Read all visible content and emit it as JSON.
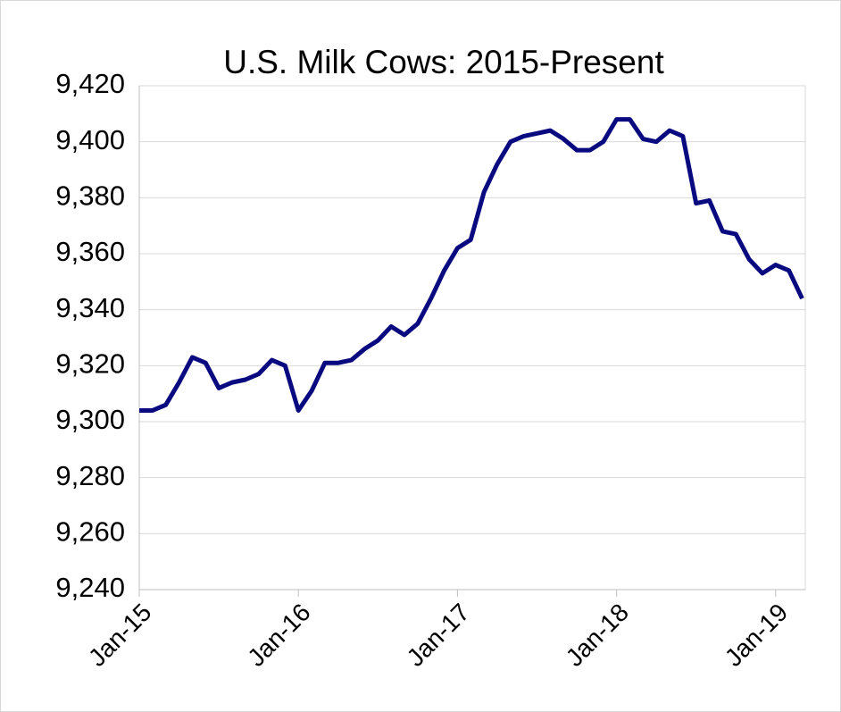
{
  "chart_data": {
    "type": "line",
    "title": "U.S. Milk Cows: 2015-Present",
    "categories": [
      "Jan-15",
      null,
      null,
      null,
      null,
      null,
      null,
      null,
      null,
      null,
      null,
      null,
      "Jan-16",
      null,
      null,
      null,
      null,
      null,
      null,
      null,
      null,
      null,
      null,
      null,
      "Jan-17",
      null,
      null,
      null,
      null,
      null,
      null,
      null,
      null,
      null,
      null,
      null,
      "Jan-18",
      null,
      null,
      null,
      null,
      null,
      null,
      null,
      null,
      null,
      null,
      null,
      "Jan-19",
      null,
      null
    ],
    "series": [
      {
        "name": "U.S. Milk Cows",
        "color": "#0a0a80",
        "values": [
          9304,
          9304,
          9306,
          9314,
          9323,
          9321,
          9312,
          9314,
          9315,
          9317,
          9322,
          9320,
          9304,
          9311,
          9321,
          9321,
          9322,
          9326,
          9329,
          9334,
          9331,
          9335,
          9344,
          9354,
          9362,
          9365,
          9382,
          9392,
          9400,
          9402,
          9403,
          9404,
          9401,
          9397,
          9397,
          9400,
          9408,
          9408,
          9401,
          9400,
          9404,
          9402,
          9378,
          9379,
          9368,
          9367,
          9358,
          9353,
          9356,
          9354,
          9344
        ]
      }
    ],
    "ylim": [
      9240,
      9420
    ],
    "yticks": [
      {
        "value": 9240,
        "label": "9,240"
      },
      {
        "value": 9260,
        "label": "9,260"
      },
      {
        "value": 9280,
        "label": "9,280"
      },
      {
        "value": 9300,
        "label": "9,300"
      },
      {
        "value": 9320,
        "label": "9,320"
      },
      {
        "value": 9340,
        "label": "9,340"
      },
      {
        "value": 9360,
        "label": "9,360"
      },
      {
        "value": 9380,
        "label": "9,380"
      },
      {
        "value": 9400,
        "label": "9,400"
      },
      {
        "value": 9420,
        "label": "9,420"
      }
    ],
    "grid": true
  }
}
